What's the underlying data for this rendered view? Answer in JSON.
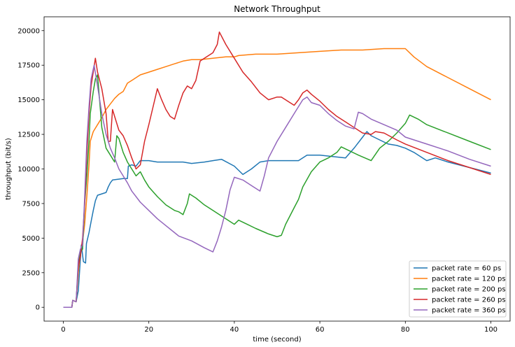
{
  "chart_data": {
    "type": "line",
    "title": "Network Throughput",
    "xlabel": "time (second)",
    "ylabel": "throughput (bit/s)",
    "xlim": [
      -4.5,
      104.5
    ],
    "ylim": [
      -1000,
      21000
    ],
    "xticks": [
      0,
      20,
      40,
      60,
      80,
      100
    ],
    "yticks": [
      0,
      2500,
      5000,
      7500,
      10000,
      12500,
      15000,
      17500,
      20000
    ],
    "grid": false,
    "legend_position": "lower right",
    "series": [
      {
        "name": "packet rate = 60 ps",
        "color": "#1f77b4",
        "points": [
          [
            0,
            0
          ],
          [
            2,
            0
          ],
          [
            2.2,
            500
          ],
          [
            3,
            400
          ],
          [
            3.5,
            1200
          ],
          [
            4.2,
            4500
          ],
          [
            4.7,
            3300
          ],
          [
            5.2,
            3200
          ],
          [
            5.4,
            4600
          ],
          [
            6,
            5400
          ],
          [
            6.5,
            6200
          ],
          [
            7,
            7000
          ],
          [
            7.5,
            7700
          ],
          [
            8,
            8100
          ],
          [
            9,
            8200
          ],
          [
            10,
            8300
          ],
          [
            10.5,
            8700
          ],
          [
            11,
            9000
          ],
          [
            11.5,
            9200
          ],
          [
            14,
            9300
          ],
          [
            15,
            9300
          ],
          [
            15.2,
            10200
          ],
          [
            16,
            10300
          ],
          [
            17,
            10200
          ],
          [
            18,
            10600
          ],
          [
            20,
            10600
          ],
          [
            22,
            10500
          ],
          [
            25,
            10500
          ],
          [
            28,
            10500
          ],
          [
            30,
            10400
          ],
          [
            33,
            10500
          ],
          [
            35,
            10600
          ],
          [
            37,
            10700
          ],
          [
            40,
            10200
          ],
          [
            42,
            9600
          ],
          [
            44,
            10000
          ],
          [
            46,
            10500
          ],
          [
            48,
            10600
          ],
          [
            50,
            10600
          ],
          [
            52,
            10600
          ],
          [
            55,
            10600
          ],
          [
            57,
            11000
          ],
          [
            60,
            11000
          ],
          [
            63,
            10900
          ],
          [
            66,
            10800
          ],
          [
            68,
            11500
          ],
          [
            70,
            12300
          ],
          [
            71,
            12700
          ],
          [
            72,
            12400
          ],
          [
            74,
            12100
          ],
          [
            76,
            11800
          ],
          [
            78,
            11700
          ],
          [
            80,
            11500
          ],
          [
            82,
            11200
          ],
          [
            85,
            10600
          ],
          [
            87,
            10800
          ],
          [
            90,
            10500
          ],
          [
            95,
            10100
          ],
          [
            100,
            9700
          ]
        ]
      },
      {
        "name": "packet rate = 120 ps",
        "color": "#ff7f0e",
        "points": [
          [
            0,
            0
          ],
          [
            2,
            0
          ],
          [
            2.2,
            500
          ],
          [
            3,
            400
          ],
          [
            3.5,
            2500
          ],
          [
            4,
            4000
          ],
          [
            4.5,
            4700
          ],
          [
            5,
            6000
          ],
          [
            5.5,
            8000
          ],
          [
            6,
            10300
          ],
          [
            6.3,
            12000
          ],
          [
            7,
            12700
          ],
          [
            8,
            13200
          ],
          [
            9,
            13700
          ],
          [
            10,
            14300
          ],
          [
            11,
            14700
          ],
          [
            12,
            15100
          ],
          [
            13,
            15400
          ],
          [
            14,
            15600
          ],
          [
            14.5,
            15900
          ],
          [
            15,
            16200
          ],
          [
            16,
            16400
          ],
          [
            18,
            16800
          ],
          [
            20,
            17000
          ],
          [
            22,
            17200
          ],
          [
            24,
            17400
          ],
          [
            26,
            17600
          ],
          [
            28,
            17800
          ],
          [
            30,
            17900
          ],
          [
            32,
            17900
          ],
          [
            35,
            18000
          ],
          [
            38,
            18100
          ],
          [
            40,
            18100
          ],
          [
            41,
            18200
          ],
          [
            45,
            18300
          ],
          [
            50,
            18300
          ],
          [
            55,
            18400
          ],
          [
            60,
            18500
          ],
          [
            65,
            18600
          ],
          [
            70,
            18600
          ],
          [
            75,
            18700
          ],
          [
            80,
            18700
          ],
          [
            82,
            18100
          ],
          [
            85,
            17400
          ],
          [
            90,
            16600
          ],
          [
            95,
            15800
          ],
          [
            100,
            15000
          ]
        ]
      },
      {
        "name": "packet rate = 200 ps",
        "color": "#2ca02c",
        "points": [
          [
            0,
            0
          ],
          [
            2,
            0
          ],
          [
            2.2,
            500
          ],
          [
            3,
            400
          ],
          [
            3.5,
            3000
          ],
          [
            4,
            4000
          ],
          [
            4.5,
            4200
          ],
          [
            5,
            7500
          ],
          [
            5.5,
            9500
          ],
          [
            6,
            12000
          ],
          [
            6.3,
            14000
          ],
          [
            7,
            15600
          ],
          [
            7.5,
            16500
          ],
          [
            8,
            16800
          ],
          [
            9,
            13000
          ],
          [
            10,
            11500
          ],
          [
            11,
            11000
          ],
          [
            12,
            10500
          ],
          [
            12.5,
            12400
          ],
          [
            13,
            12200
          ],
          [
            14,
            11200
          ],
          [
            15,
            10500
          ],
          [
            16,
            10000
          ],
          [
            17,
            9500
          ],
          [
            18,
            9800
          ],
          [
            19,
            9200
          ],
          [
            20,
            8700
          ],
          [
            22,
            8000
          ],
          [
            24,
            7400
          ],
          [
            26,
            7000
          ],
          [
            27,
            6900
          ],
          [
            28,
            6700
          ],
          [
            29,
            7500
          ],
          [
            29.5,
            8200
          ],
          [
            31,
            7900
          ],
          [
            33,
            7400
          ],
          [
            35,
            7000
          ],
          [
            37,
            6600
          ],
          [
            40,
            6000
          ],
          [
            41,
            6300
          ],
          [
            43,
            6000
          ],
          [
            45,
            5700
          ],
          [
            48,
            5300
          ],
          [
            50,
            5100
          ],
          [
            51,
            5200
          ],
          [
            52,
            6000
          ],
          [
            54,
            7200
          ],
          [
            55,
            7800
          ],
          [
            56,
            8700
          ],
          [
            58,
            9800
          ],
          [
            60,
            10500
          ],
          [
            62,
            10800
          ],
          [
            63,
            11000
          ],
          [
            64,
            11200
          ],
          [
            65,
            11600
          ],
          [
            67,
            11300
          ],
          [
            69,
            11000
          ],
          [
            72,
            10600
          ],
          [
            74,
            11500
          ],
          [
            76,
            12000
          ],
          [
            78,
            12600
          ],
          [
            80,
            13300
          ],
          [
            81,
            13900
          ],
          [
            83,
            13600
          ],
          [
            85,
            13200
          ],
          [
            90,
            12600
          ],
          [
            95,
            12000
          ],
          [
            100,
            11400
          ]
        ]
      },
      {
        "name": "packet rate = 260 ps",
        "color": "#d62728",
        "points": [
          [
            0,
            0
          ],
          [
            2,
            0
          ],
          [
            2.2,
            500
          ],
          [
            3,
            400
          ],
          [
            3.5,
            3000
          ],
          [
            4,
            3700
          ],
          [
            4.5,
            5000
          ],
          [
            5,
            7500
          ],
          [
            5.5,
            11000
          ],
          [
            6,
            14000
          ],
          [
            6.5,
            16000
          ],
          [
            7.5,
            18000
          ],
          [
            8,
            17000
          ],
          [
            9,
            15800
          ],
          [
            10,
            14000
          ],
          [
            10.5,
            12000
          ],
          [
            11,
            12000
          ],
          [
            11.5,
            14300
          ],
          [
            12,
            13800
          ],
          [
            13,
            12800
          ],
          [
            14,
            12400
          ],
          [
            15,
            11700
          ],
          [
            16,
            10800
          ],
          [
            17,
            10000
          ],
          [
            18,
            10300
          ],
          [
            19,
            12000
          ],
          [
            20,
            13200
          ],
          [
            21,
            14500
          ],
          [
            22,
            15800
          ],
          [
            23,
            15000
          ],
          [
            24,
            14300
          ],
          [
            25,
            13800
          ],
          [
            26,
            13600
          ],
          [
            27,
            14600
          ],
          [
            28,
            15500
          ],
          [
            29,
            16000
          ],
          [
            30,
            15800
          ],
          [
            31,
            16400
          ],
          [
            32,
            17800
          ],
          [
            33,
            18000
          ],
          [
            35,
            18400
          ],
          [
            36,
            19000
          ],
          [
            36.5,
            19900
          ],
          [
            38,
            19000
          ],
          [
            40,
            18000
          ],
          [
            42,
            17000
          ],
          [
            44,
            16300
          ],
          [
            46,
            15500
          ],
          [
            48,
            15000
          ],
          [
            50,
            15200
          ],
          [
            51,
            15200
          ],
          [
            53,
            14800
          ],
          [
            54,
            14600
          ],
          [
            55,
            15000
          ],
          [
            56,
            15500
          ],
          [
            57,
            15700
          ],
          [
            58,
            15400
          ],
          [
            60,
            14900
          ],
          [
            62,
            14300
          ],
          [
            64,
            13800
          ],
          [
            66,
            13400
          ],
          [
            68,
            13000
          ],
          [
            70,
            12600
          ],
          [
            72,
            12500
          ],
          [
            73,
            12700
          ],
          [
            75,
            12600
          ],
          [
            78,
            12100
          ],
          [
            80,
            11800
          ],
          [
            85,
            11200
          ],
          [
            90,
            10600
          ],
          [
            95,
            10100
          ],
          [
            100,
            9600
          ]
        ]
      },
      {
        "name": "packet rate = 360 ps",
        "color": "#9467bd",
        "points": [
          [
            0,
            0
          ],
          [
            2,
            0
          ],
          [
            2.2,
            500
          ],
          [
            3,
            400
          ],
          [
            3.5,
            3500
          ],
          [
            4,
            4200
          ],
          [
            4.5,
            4500
          ],
          [
            5,
            8000
          ],
          [
            5.5,
            12000
          ],
          [
            6,
            14500
          ],
          [
            6.5,
            16500
          ],
          [
            7.2,
            17500
          ],
          [
            8,
            16000
          ],
          [
            9,
            14000
          ],
          [
            10,
            12500
          ],
          [
            11,
            11500
          ],
          [
            12,
            10800
          ],
          [
            13,
            10000
          ],
          [
            14,
            9500
          ],
          [
            15,
            9000
          ],
          [
            16,
            8400
          ],
          [
            18,
            7600
          ],
          [
            20,
            7000
          ],
          [
            22,
            6400
          ],
          [
            24,
            5900
          ],
          [
            26,
            5400
          ],
          [
            27,
            5150
          ],
          [
            30,
            4800
          ],
          [
            33,
            4300
          ],
          [
            35,
            4000
          ],
          [
            36,
            4800
          ],
          [
            37,
            5800
          ],
          [
            38,
            7000
          ],
          [
            39,
            8500
          ],
          [
            40,
            9400
          ],
          [
            42,
            9200
          ],
          [
            44,
            8800
          ],
          [
            46,
            8400
          ],
          [
            47,
            9500
          ],
          [
            48,
            10800
          ],
          [
            50,
            12000
          ],
          [
            52,
            13000
          ],
          [
            54,
            14000
          ],
          [
            56,
            15000
          ],
          [
            57,
            15200
          ],
          [
            58,
            14800
          ],
          [
            60,
            14600
          ],
          [
            62,
            14000
          ],
          [
            64,
            13500
          ],
          [
            66,
            13100
          ],
          [
            68,
            12900
          ],
          [
            69,
            14100
          ],
          [
            70,
            14000
          ],
          [
            72,
            13600
          ],
          [
            75,
            13200
          ],
          [
            78,
            12800
          ],
          [
            80,
            12300
          ],
          [
            85,
            11800
          ],
          [
            90,
            11300
          ],
          [
            95,
            10700
          ],
          [
            100,
            10200
          ]
        ]
      }
    ]
  }
}
